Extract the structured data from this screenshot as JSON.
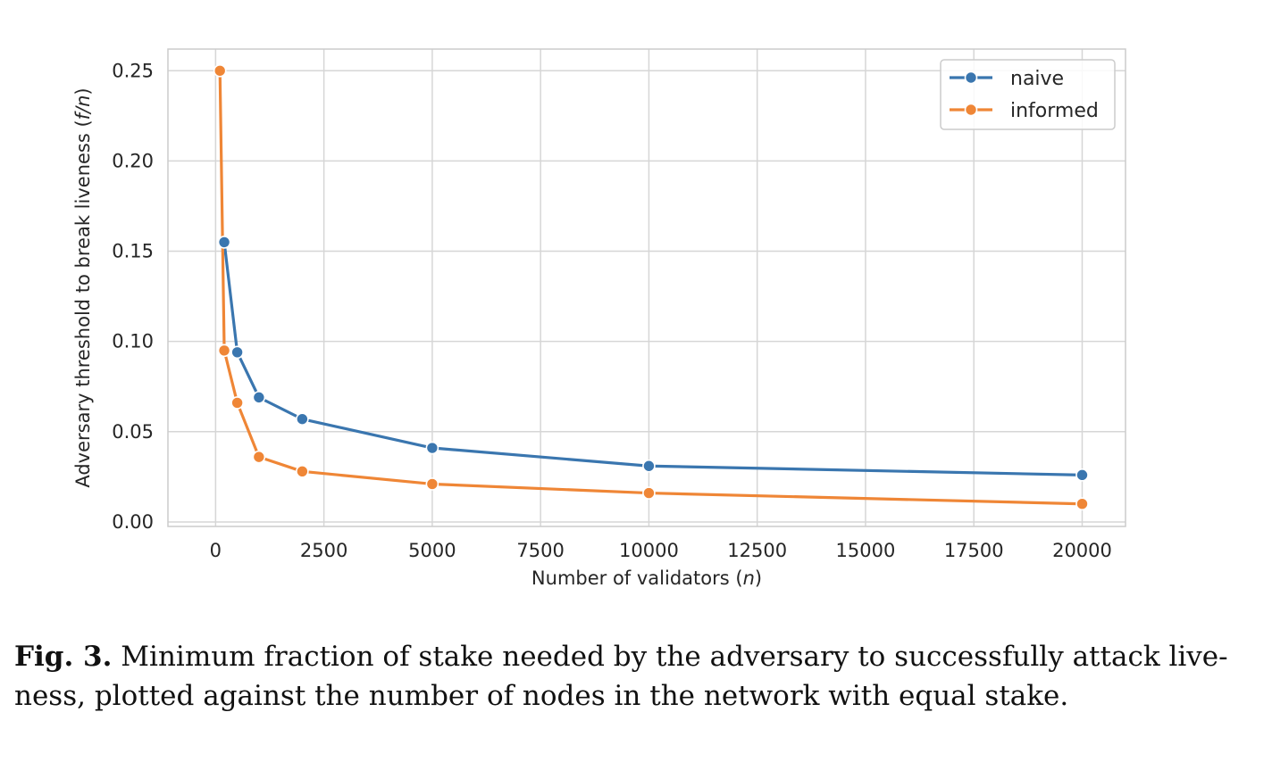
{
  "chart_data": {
    "type": "line",
    "title": "",
    "xlabel_prefix": "Number of validators (",
    "xlabel_var": "n",
    "xlabel_suffix": ")",
    "ylabel_prefix": "Adversary threshold to break liveness (",
    "ylabel_var": "f/n",
    "ylabel_suffix": ")",
    "xlim": [
      -1100,
      21000
    ],
    "ylim": [
      -0.0025,
      0.262
    ],
    "grid": true,
    "legend_position": "top-right",
    "x_ticks": [
      0,
      2500,
      5000,
      7500,
      10000,
      12500,
      15000,
      17500,
      20000
    ],
    "x_tick_labels": [
      "0",
      "2500",
      "5000",
      "7500",
      "10000",
      "12500",
      "15000",
      "17500",
      "20000"
    ],
    "y_ticks": [
      0.0,
      0.05,
      0.1,
      0.15,
      0.2,
      0.25
    ],
    "y_tick_labels": [
      "0.00",
      "0.05",
      "0.10",
      "0.15",
      "0.20",
      "0.25"
    ],
    "series": [
      {
        "name": "naive",
        "color": "#3a76af",
        "points": [
          {
            "x": 200,
            "y": 0.155
          },
          {
            "x": 500,
            "y": 0.094
          },
          {
            "x": 1000,
            "y": 0.069
          },
          {
            "x": 2000,
            "y": 0.057
          },
          {
            "x": 5000,
            "y": 0.041
          },
          {
            "x": 10000,
            "y": 0.031
          },
          {
            "x": 20000,
            "y": 0.026
          }
        ]
      },
      {
        "name": "informed",
        "color": "#ef8636",
        "points": [
          {
            "x": 100,
            "y": 0.25
          },
          {
            "x": 200,
            "y": 0.095
          },
          {
            "x": 500,
            "y": 0.066
          },
          {
            "x": 1000,
            "y": 0.036
          },
          {
            "x": 2000,
            "y": 0.028
          },
          {
            "x": 5000,
            "y": 0.021
          },
          {
            "x": 10000,
            "y": 0.016
          },
          {
            "x": 20000,
            "y": 0.01
          }
        ]
      }
    ]
  },
  "caption": {
    "label": "Fig. 3.",
    "text": "Minimum fraction of stake needed by the adversary to successfully attack live- ness, plotted against the number of nodes in the network with equal stake."
  }
}
